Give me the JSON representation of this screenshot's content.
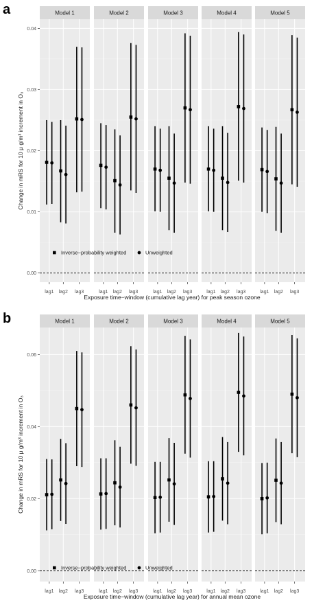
{
  "chart_data": [
    {
      "type": "scatter",
      "panel_label": "a",
      "facets": [
        "Model 1",
        "Model 2",
        "Model 3",
        "Model 4",
        "Model 5"
      ],
      "categories": [
        "lag1",
        "lag2",
        "lag3"
      ],
      "ylabel": "Change in mRS for 10 μ g/m³ increment in O₃",
      "xlabel": "Exposure time−window (cumulative lag year) for peak season ozone",
      "ylim": [
        -0.0015,
        0.0415
      ],
      "yticks": [
        0.0,
        0.01,
        0.02,
        0.03,
        0.04
      ],
      "ytick_labels": [
        "0.00",
        "0.01",
        "0.02",
        "0.03",
        "0.04"
      ],
      "zero_line": "dashed",
      "legend_placement": "bottom-left",
      "series": [
        {
          "name": "Inverse−probability weighted",
          "marker": "square",
          "points": [
            [
              {
                "y": 0.0181,
                "lo": 0.0112,
                "hi": 0.025
              },
              {
                "y": 0.0167,
                "lo": 0.0083,
                "hi": 0.025
              },
              {
                "y": 0.0252,
                "lo": 0.0132,
                "hi": 0.037
              }
            ],
            [
              {
                "y": 0.0176,
                "lo": 0.0106,
                "hi": 0.0245
              },
              {
                "y": 0.0151,
                "lo": 0.0066,
                "hi": 0.0235
              },
              {
                "y": 0.0255,
                "lo": 0.0135,
                "hi": 0.0376
              }
            ],
            [
              {
                "y": 0.017,
                "lo": 0.0101,
                "hi": 0.024
              },
              {
                "y": 0.0155,
                "lo": 0.007,
                "hi": 0.024
              },
              {
                "y": 0.027,
                "lo": 0.0148,
                "hi": 0.0392
              }
            ],
            [
              {
                "y": 0.017,
                "lo": 0.0101,
                "hi": 0.024
              },
              {
                "y": 0.0155,
                "lo": 0.007,
                "hi": 0.024
              },
              {
                "y": 0.0272,
                "lo": 0.0151,
                "hi": 0.0394
              }
            ],
            [
              {
                "y": 0.0169,
                "lo": 0.01,
                "hi": 0.0238
              },
              {
                "y": 0.0154,
                "lo": 0.0069,
                "hi": 0.0239
              },
              {
                "y": 0.0267,
                "lo": 0.0145,
                "hi": 0.0389
              }
            ]
          ]
        },
        {
          "name": "Unweighted",
          "marker": "circle",
          "points": [
            [
              {
                "y": 0.018,
                "lo": 0.0113,
                "hi": 0.0247
              },
              {
                "y": 0.0161,
                "lo": 0.0081,
                "hi": 0.0241
              },
              {
                "y": 0.0251,
                "lo": 0.0133,
                "hi": 0.0369
              }
            ],
            [
              {
                "y": 0.0173,
                "lo": 0.0104,
                "hi": 0.0242
              },
              {
                "y": 0.0144,
                "lo": 0.0063,
                "hi": 0.0225
              },
              {
                "y": 0.0252,
                "lo": 0.0131,
                "hi": 0.0373
              }
            ],
            [
              {
                "y": 0.0168,
                "lo": 0.01,
                "hi": 0.0236
              },
              {
                "y": 0.0147,
                "lo": 0.0066,
                "hi": 0.0228
              },
              {
                "y": 0.0267,
                "lo": 0.0146,
                "hi": 0.0388
              }
            ],
            [
              {
                "y": 0.0168,
                "lo": 0.01,
                "hi": 0.0236
              },
              {
                "y": 0.0148,
                "lo": 0.0067,
                "hi": 0.0229
              },
              {
                "y": 0.0269,
                "lo": 0.0148,
                "hi": 0.039
              }
            ],
            [
              {
                "y": 0.0166,
                "lo": 0.0098,
                "hi": 0.0234
              },
              {
                "y": 0.0147,
                "lo": 0.0066,
                "hi": 0.0228
              },
              {
                "y": 0.0263,
                "lo": 0.0141,
                "hi": 0.0385
              }
            ]
          ]
        }
      ]
    },
    {
      "type": "scatter",
      "panel_label": "b",
      "facets": [
        "Model 1",
        "Model 2",
        "Model 3",
        "Model 4",
        "Model 5"
      ],
      "categories": [
        "lag1",
        "lag2",
        "lag3"
      ],
      "ylabel": "Change in mRS for 10 μ g/m³ increment in O₃",
      "xlabel": "Exposure time−window (cumulative lag year) for annual mean ozone",
      "ylim": [
        -0.003,
        0.0675
      ],
      "yticks": [
        0.0,
        0.02,
        0.04,
        0.06
      ],
      "ytick_labels": [
        "0.00",
        "0.02",
        "0.04",
        "0.06"
      ],
      "zero_line": "dashed",
      "legend_placement": "bottom-left",
      "series": [
        {
          "name": "Inverse−probability weighted",
          "marker": "square",
          "points": [
            [
              {
                "y": 0.0211,
                "lo": 0.0112,
                "hi": 0.031
              },
              {
                "y": 0.0252,
                "lo": 0.0138,
                "hi": 0.0366
              },
              {
                "y": 0.045,
                "lo": 0.029,
                "hi": 0.061
              }
            ],
            [
              {
                "y": 0.0213,
                "lo": 0.0114,
                "hi": 0.0312
              },
              {
                "y": 0.0244,
                "lo": 0.0126,
                "hi": 0.0362
              },
              {
                "y": 0.046,
                "lo": 0.0297,
                "hi": 0.0623
              }
            ],
            [
              {
                "y": 0.0203,
                "lo": 0.0104,
                "hi": 0.0302
              },
              {
                "y": 0.0252,
                "lo": 0.0136,
                "hi": 0.0368
              },
              {
                "y": 0.0488,
                "lo": 0.0325,
                "hi": 0.0652
              }
            ],
            [
              {
                "y": 0.0205,
                "lo": 0.0106,
                "hi": 0.0304
              },
              {
                "y": 0.0255,
                "lo": 0.0139,
                "hi": 0.0371
              },
              {
                "y": 0.0495,
                "lo": 0.033,
                "hi": 0.066
              }
            ],
            [
              {
                "y": 0.02,
                "lo": 0.0101,
                "hi": 0.0299
              },
              {
                "y": 0.0251,
                "lo": 0.0135,
                "hi": 0.0367
              },
              {
                "y": 0.049,
                "lo": 0.0326,
                "hi": 0.0654
              }
            ]
          ]
        },
        {
          "name": "Unweighted",
          "marker": "circle",
          "points": [
            [
              {
                "y": 0.0212,
                "lo": 0.0115,
                "hi": 0.0309
              },
              {
                "y": 0.0242,
                "lo": 0.013,
                "hi": 0.0354
              },
              {
                "y": 0.0447,
                "lo": 0.0288,
                "hi": 0.0606
              }
            ],
            [
              {
                "y": 0.0214,
                "lo": 0.0116,
                "hi": 0.0312
              },
              {
                "y": 0.0232,
                "lo": 0.012,
                "hi": 0.0344
              },
              {
                "y": 0.0452,
                "lo": 0.0291,
                "hi": 0.0614
              }
            ],
            [
              {
                "y": 0.0204,
                "lo": 0.0106,
                "hi": 0.0302
              },
              {
                "y": 0.0241,
                "lo": 0.0127,
                "hi": 0.0355
              },
              {
                "y": 0.0478,
                "lo": 0.0314,
                "hi": 0.0642
              }
            ],
            [
              {
                "y": 0.0206,
                "lo": 0.0108,
                "hi": 0.0304
              },
              {
                "y": 0.0243,
                "lo": 0.0129,
                "hi": 0.0357
              },
              {
                "y": 0.0485,
                "lo": 0.032,
                "hi": 0.065
              }
            ],
            [
              {
                "y": 0.0202,
                "lo": 0.0104,
                "hi": 0.03
              },
              {
                "y": 0.0243,
                "lo": 0.0129,
                "hi": 0.0357
              },
              {
                "y": 0.048,
                "lo": 0.0315,
                "hi": 0.0645
              }
            ]
          ]
        }
      ]
    }
  ]
}
